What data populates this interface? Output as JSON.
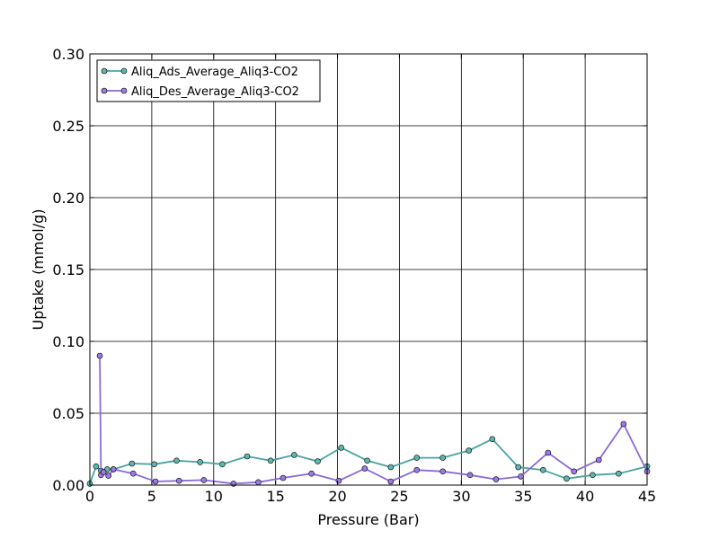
{
  "chart_data": {
    "type": "line",
    "xlabel": "Pressure (Bar)",
    "ylabel": "Uptake (mmol/g)",
    "xlim": [
      0,
      45
    ],
    "ylim": [
      0,
      0.3
    ],
    "xticks": [
      0,
      5,
      10,
      15,
      20,
      25,
      30,
      35,
      40,
      45
    ],
    "yticks": [
      0.0,
      0.05,
      0.1,
      0.15,
      0.2,
      0.25,
      0.3
    ],
    "xtick_labels": [
      "0",
      "5",
      "10",
      "15",
      "20",
      "25",
      "30",
      "35",
      "40",
      "45"
    ],
    "ytick_labels": [
      "0.00",
      "0.05",
      "0.10",
      "0.15",
      "0.20",
      "0.25",
      "0.30"
    ],
    "grid": true,
    "legend_position": "top-left",
    "series": [
      {
        "name": "Aliq_Ads_Average_Aliq3-CO2",
        "color": "#4aa3a0",
        "marker_fill": "#5fb6ad",
        "x": [
          0.0,
          0.5,
          0.9,
          1.4,
          1.9,
          3.4,
          5.2,
          7.0,
          8.9,
          10.7,
          12.7,
          14.6,
          16.5,
          18.4,
          20.3,
          22.4,
          24.3,
          26.4,
          28.5,
          30.6,
          32.5,
          34.6,
          36.6,
          38.5,
          40.6,
          42.7,
          45.0
        ],
        "y": [
          0.001,
          0.013,
          0.01,
          0.011,
          0.011,
          0.015,
          0.0145,
          0.017,
          0.016,
          0.0145,
          0.02,
          0.017,
          0.021,
          0.0165,
          0.026,
          0.017,
          0.0125,
          0.019,
          0.019,
          0.024,
          0.032,
          0.0125,
          0.0105,
          0.0045,
          0.007,
          0.008,
          0.013
        ]
      },
      {
        "name": "Aliq_Des_Average_Aliq3-CO2",
        "color": "#8a6ad8",
        "marker_fill": "#9a7ae6",
        "x": [
          0.8,
          0.9,
          1.1,
          1.5,
          1.9,
          3.5,
          5.3,
          7.2,
          9.2,
          11.6,
          13.6,
          15.6,
          17.9,
          20.1,
          22.2,
          24.3,
          26.4,
          28.5,
          30.7,
          32.8,
          34.8,
          37.0,
          39.1,
          41.1,
          43.1,
          45.0
        ],
        "y": [
          0.09,
          0.007,
          0.009,
          0.0065,
          0.011,
          0.008,
          0.0025,
          0.003,
          0.0035,
          0.001,
          0.002,
          0.005,
          0.008,
          0.003,
          0.0115,
          0.0025,
          0.0105,
          0.0095,
          0.007,
          0.004,
          0.006,
          0.0225,
          0.0095,
          0.0175,
          0.0425,
          0.0095
        ]
      }
    ]
  }
}
